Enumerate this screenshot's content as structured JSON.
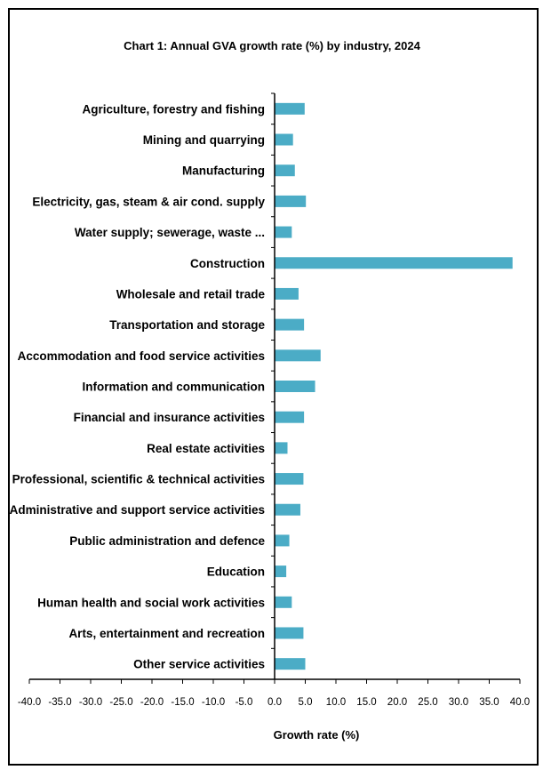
{
  "chart_data": {
    "type": "bar",
    "orientation": "horizontal",
    "title": "Chart 1: Annual GVA growth rate (%) by industry, 2024",
    "xlabel": "Growth rate (%)",
    "ylabel": "",
    "xlim": [
      -40,
      40
    ],
    "xticks": [
      "-40.0",
      "-35.0",
      "-30.0",
      "-25.0",
      "-20.0",
      "-15.0",
      "-10.0",
      "-5.0",
      "0.0",
      "5.0",
      "10.0",
      "15.0",
      "20.0",
      "25.0",
      "30.0",
      "35.0",
      "40.0"
    ],
    "grid": false,
    "legend": "none",
    "bar_color": "#4BACC6",
    "categories": [
      "Agriculture, forestry and fishing",
      "Mining and quarrying",
      "Manufacturing",
      "Electricity, gas, steam & air cond. supply",
      "Water supply; sewerage, waste ...",
      "Construction",
      "Wholesale and retail trade",
      "Transportation and storage",
      "Accommodation and food service activities",
      "Information and communication",
      "Financial and insurance activities",
      "Real estate activities",
      "Professional, scientific & technical activities",
      "Administrative and support service activities",
      "Public administration and defence",
      "Education",
      "Human health and social work activities",
      "Arts, entertainment and recreation",
      "Other service activities"
    ],
    "values": [
      4.9,
      3.0,
      3.3,
      5.1,
      2.8,
      38.8,
      3.9,
      4.8,
      7.5,
      6.6,
      4.8,
      2.1,
      4.7,
      4.2,
      2.4,
      1.9,
      2.8,
      4.7,
      5.0
    ]
  }
}
